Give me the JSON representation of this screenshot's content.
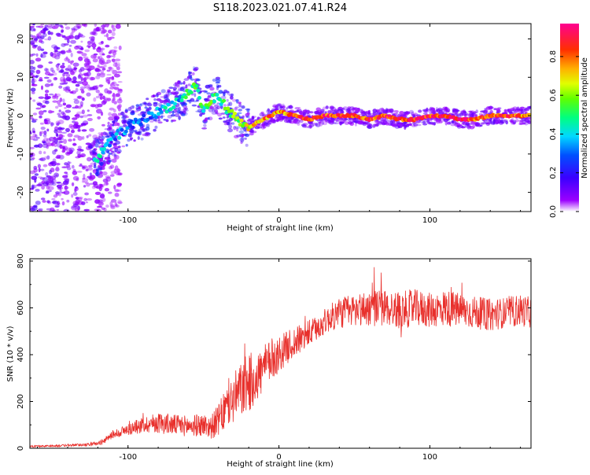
{
  "title": "S118.2023.021.07.41.R24",
  "colors": {
    "snr_line": "#e8302c",
    "axis": "#000000",
    "background": "#ffffff"
  },
  "chart_data": [
    {
      "type": "heatmap",
      "title": "S118.2023.021.07.41.R24",
      "xlabel": "Height of straight line (km)",
      "ylabel": "Frequency (Hz)",
      "xlim": [
        -165,
        167
      ],
      "ylim": [
        -25,
        24
      ],
      "x_ticks": [
        -100,
        0,
        100
      ],
      "x_tick_labels": [
        "-100",
        "0",
        "100"
      ],
      "y_ticks": [
        -20,
        -10,
        0,
        10,
        20
      ],
      "y_tick_labels": [
        "-20",
        "-10",
        "0",
        "10",
        "20"
      ],
      "colorbar": {
        "label": "Normalized spectral amplitude",
        "range": [
          0,
          0.97
        ],
        "ticks": [
          0.0,
          0.2,
          0.4,
          0.6,
          0.8
        ],
        "tick_labels": [
          "0.0",
          "0.2",
          "0.4",
          "0.6",
          "0.8"
        ],
        "colormap": "rainbow (white-purple-blue-cyan-green-yellow-orange-red-magenta)"
      },
      "ridge": {
        "x": [
          -120,
          -110,
          -100,
          -90,
          -80,
          -70,
          -60,
          -55,
          -50,
          -45,
          -40,
          -35,
          -30,
          -25,
          -20,
          -15,
          -10,
          -5,
          0,
          10,
          20,
          30,
          40,
          50,
          60,
          70,
          80,
          90,
          100,
          110,
          120,
          130,
          140,
          150,
          160,
          167
        ],
        "frequency": [
          -11,
          -6,
          -3,
          -1,
          1,
          3,
          6,
          8,
          1,
          4,
          5,
          2,
          0,
          -2,
          -3,
          -2,
          -1,
          0,
          1,
          0,
          -1,
          0,
          0,
          0,
          -1,
          0,
          -1,
          -1,
          0,
          0,
          -1,
          -1,
          0,
          0,
          0,
          0
        ],
        "amplitude": [
          0.4,
          0.35,
          0.3,
          0.3,
          0.35,
          0.4,
          0.45,
          0.5,
          0.5,
          0.55,
          0.5,
          0.5,
          0.55,
          0.6,
          0.7,
          0.75,
          0.8,
          0.8,
          0.75,
          0.85,
          0.9,
          0.85,
          0.9,
          0.9,
          0.85,
          0.9,
          0.85,
          0.9,
          0.85,
          0.9,
          0.9,
          0.85,
          0.8,
          0.85,
          0.8,
          0.8
        ]
      }
    },
    {
      "type": "line",
      "xlabel": "Height of straight line (km)",
      "ylabel": "SNR (10 * v/v)",
      "xlim": [
        -165,
        167
      ],
      "ylim": [
        0,
        810
      ],
      "x_ticks": [
        -100,
        0,
        100
      ],
      "x_tick_labels": [
        "-100",
        "0",
        "100"
      ],
      "y_ticks": [
        0,
        200,
        400,
        600,
        800
      ],
      "y_tick_labels": [
        "0",
        "200",
        "400",
        "600",
        "800"
      ],
      "series": [
        {
          "x": [
            -165,
            -150,
            -140,
            -130,
            -120,
            -115,
            -110,
            -100,
            -90,
            -80,
            -70,
            -60,
            -50,
            -45,
            -40,
            -35,
            -30,
            -25,
            -20,
            -15,
            -10,
            -5,
            0,
            5,
            10,
            15,
            20,
            25,
            30,
            35,
            40,
            50,
            60,
            70,
            80,
            90,
            100,
            110,
            120,
            130,
            140,
            150,
            160,
            167
          ],
          "values": [
            8,
            10,
            12,
            15,
            20,
            35,
            60,
            80,
            100,
            110,
            100,
            95,
            100,
            90,
            120,
            170,
            210,
            250,
            280,
            300,
            340,
            380,
            400,
            430,
            450,
            470,
            490,
            510,
            540,
            560,
            580,
            590,
            600,
            600,
            590,
            600,
            590,
            600,
            590,
            580,
            570,
            580,
            590,
            580
          ],
          "noise": [
            4,
            4,
            5,
            6,
            8,
            12,
            18,
            25,
            35,
            45,
            45,
            45,
            50,
            50,
            70,
            90,
            110,
            120,
            130,
            110,
            100,
            90,
            80,
            70,
            70,
            60,
            60,
            55,
            55,
            60,
            70,
            70,
            80,
            80,
            80,
            80,
            75,
            80,
            75,
            70,
            70,
            65,
            70,
            65
          ],
          "color": "#e8302c"
        }
      ]
    }
  ]
}
